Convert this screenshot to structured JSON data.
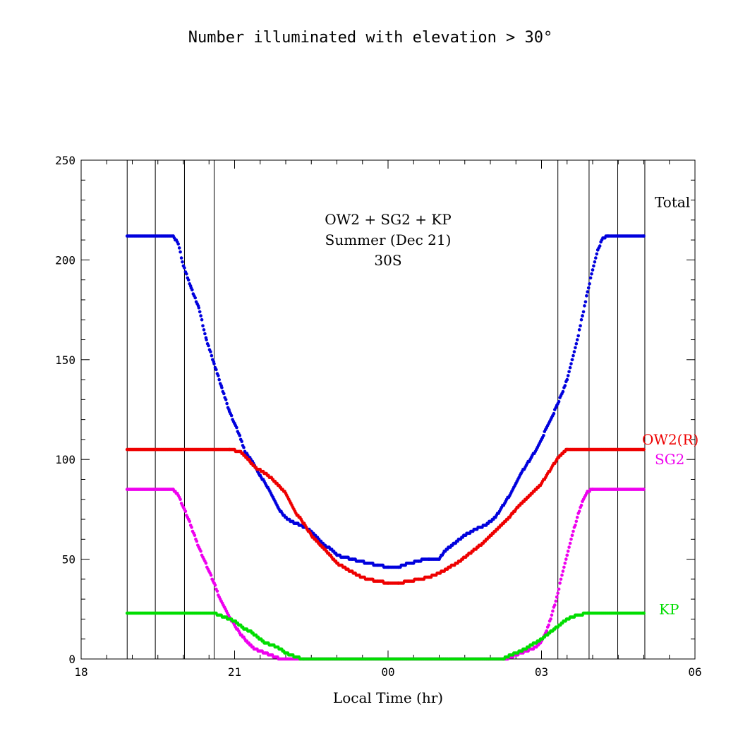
{
  "chart_data": {
    "type": "scatter",
    "title": "Number illuminated with elevation > 30°",
    "xlabel": "Local Time (hr)",
    "ylabel": "",
    "xlim": [
      18,
      30
    ],
    "ylim": [
      0,
      250
    ],
    "x_tick_values": [
      18,
      21,
      24,
      27,
      30
    ],
    "x_tick_labels": [
      "18",
      "21",
      "00",
      "03",
      "06"
    ],
    "y_tick_values": [
      0,
      50,
      100,
      150,
      200,
      250
    ],
    "y_tick_labels": [
      "0",
      "50",
      "100",
      "150",
      "200",
      "250"
    ],
    "annotation_lines": [
      "OW2 + SG2 + KP",
      "Summer (Dec 21)",
      "30S"
    ],
    "vertical_lines": [
      18.9,
      19.45,
      20.02,
      20.6,
      27.32,
      27.93,
      28.49,
      29.02
    ],
    "series": [
      {
        "name": "Total",
        "color": "#0000dd",
        "points": [
          [
            18.9,
            212
          ],
          [
            19.8,
            212
          ],
          [
            19.9,
            208
          ],
          [
            20.0,
            197
          ],
          [
            20.15,
            186
          ],
          [
            20.3,
            176
          ],
          [
            20.45,
            160
          ],
          [
            20.6,
            148
          ],
          [
            20.75,
            136
          ],
          [
            20.9,
            124
          ],
          [
            21.0,
            118
          ],
          [
            21.1,
            112
          ],
          [
            21.2,
            104
          ],
          [
            21.35,
            99
          ],
          [
            21.5,
            92
          ],
          [
            21.65,
            86
          ],
          [
            21.75,
            81
          ],
          [
            21.85,
            76
          ],
          [
            21.95,
            72
          ],
          [
            22.1,
            69
          ],
          [
            22.3,
            67
          ],
          [
            22.5,
            64
          ],
          [
            22.65,
            60
          ],
          [
            22.75,
            57
          ],
          [
            22.9,
            55
          ],
          [
            23.0,
            52
          ],
          [
            23.3,
            50
          ],
          [
            23.6,
            48
          ],
          [
            23.8,
            47
          ],
          [
            24.0,
            46
          ],
          [
            24.2,
            46
          ],
          [
            24.4,
            48
          ],
          [
            24.6,
            49
          ],
          [
            24.7,
            50
          ],
          [
            24.8,
            50
          ],
          [
            25.0,
            50
          ],
          [
            25.1,
            54
          ],
          [
            25.3,
            58
          ],
          [
            25.5,
            62
          ],
          [
            25.7,
            65
          ],
          [
            25.9,
            67
          ],
          [
            26.1,
            71
          ],
          [
            26.2,
            75
          ],
          [
            26.3,
            79
          ],
          [
            26.4,
            83
          ],
          [
            26.5,
            88
          ],
          [
            26.6,
            93
          ],
          [
            26.7,
            97
          ],
          [
            26.8,
            101
          ],
          [
            26.9,
            105
          ],
          [
            27.0,
            110
          ],
          [
            27.1,
            116
          ],
          [
            27.2,
            121
          ],
          [
            27.3,
            127
          ],
          [
            27.4,
            133
          ],
          [
            27.5,
            140
          ],
          [
            27.6,
            150
          ],
          [
            27.7,
            160
          ],
          [
            27.8,
            172
          ],
          [
            27.9,
            184
          ],
          [
            28.0,
            195
          ],
          [
            28.1,
            205
          ],
          [
            28.2,
            211
          ],
          [
            28.3,
            212
          ],
          [
            29.0,
            212
          ]
        ]
      },
      {
        "name": "OW2(R)",
        "color": "#ee0000",
        "points": [
          [
            18.9,
            105
          ],
          [
            20.9,
            105
          ],
          [
            21.1,
            104
          ],
          [
            21.2,
            102
          ],
          [
            21.3,
            99
          ],
          [
            21.4,
            96
          ],
          [
            21.6,
            93
          ],
          [
            21.75,
            90
          ],
          [
            21.9,
            86
          ],
          [
            22.0,
            83
          ],
          [
            22.1,
            78
          ],
          [
            22.2,
            73
          ],
          [
            22.3,
            70
          ],
          [
            22.4,
            66
          ],
          [
            22.5,
            62
          ],
          [
            22.65,
            58
          ],
          [
            22.8,
            54
          ],
          [
            22.9,
            51
          ],
          [
            23.0,
            48
          ],
          [
            23.2,
            45
          ],
          [
            23.4,
            42
          ],
          [
            23.6,
            40
          ],
          [
            23.8,
            39
          ],
          [
            24.0,
            38
          ],
          [
            24.2,
            38
          ],
          [
            24.4,
            39
          ],
          [
            24.6,
            40
          ],
          [
            24.8,
            41
          ],
          [
            25.0,
            43
          ],
          [
            25.2,
            46
          ],
          [
            25.4,
            49
          ],
          [
            25.6,
            53
          ],
          [
            25.8,
            57
          ],
          [
            26.0,
            62
          ],
          [
            26.2,
            67
          ],
          [
            26.4,
            72
          ],
          [
            26.6,
            78
          ],
          [
            26.8,
            83
          ],
          [
            27.0,
            88
          ],
          [
            27.1,
            92
          ],
          [
            27.2,
            96
          ],
          [
            27.3,
            100
          ],
          [
            27.4,
            103
          ],
          [
            27.5,
            105
          ],
          [
            29.0,
            105
          ]
        ]
      },
      {
        "name": "SG2",
        "color": "#ee00ee",
        "points": [
          [
            18.9,
            85
          ],
          [
            19.8,
            85
          ],
          [
            19.9,
            82
          ],
          [
            20.0,
            76
          ],
          [
            20.1,
            70
          ],
          [
            20.2,
            63
          ],
          [
            20.3,
            56
          ],
          [
            20.4,
            50
          ],
          [
            20.5,
            44
          ],
          [
            20.6,
            38
          ],
          [
            20.7,
            31
          ],
          [
            20.8,
            26
          ],
          [
            20.9,
            21
          ],
          [
            21.0,
            17
          ],
          [
            21.1,
            13
          ],
          [
            21.2,
            10
          ],
          [
            21.3,
            7
          ],
          [
            21.4,
            5
          ],
          [
            21.5,
            4
          ],
          [
            21.6,
            3
          ],
          [
            21.7,
            2
          ],
          [
            21.8,
            1
          ],
          [
            21.9,
            0
          ],
          [
            26.3,
            0
          ],
          [
            26.5,
            2
          ],
          [
            26.7,
            4
          ],
          [
            26.9,
            6
          ],
          [
            27.0,
            9
          ],
          [
            27.1,
            14
          ],
          [
            27.2,
            22
          ],
          [
            27.3,
            31
          ],
          [
            27.4,
            42
          ],
          [
            27.5,
            52
          ],
          [
            27.6,
            62
          ],
          [
            27.7,
            71
          ],
          [
            27.8,
            79
          ],
          [
            27.9,
            84
          ],
          [
            28.0,
            85
          ],
          [
            29.0,
            85
          ]
        ]
      },
      {
        "name": "KP",
        "color": "#00dd00",
        "points": [
          [
            18.9,
            23
          ],
          [
            20.6,
            23
          ],
          [
            20.7,
            22
          ],
          [
            20.8,
            21
          ],
          [
            20.9,
            20
          ],
          [
            21.0,
            19
          ],
          [
            21.1,
            17
          ],
          [
            21.2,
            15
          ],
          [
            21.3,
            14
          ],
          [
            21.4,
            12
          ],
          [
            21.5,
            10
          ],
          [
            21.6,
            8
          ],
          [
            21.75,
            7
          ],
          [
            21.9,
            5
          ],
          [
            22.0,
            3
          ],
          [
            22.1,
            2
          ],
          [
            22.2,
            1
          ],
          [
            22.35,
            0
          ],
          [
            26.25,
            0
          ],
          [
            26.4,
            2
          ],
          [
            26.6,
            4
          ],
          [
            26.8,
            7
          ],
          [
            27.0,
            10
          ],
          [
            27.2,
            14
          ],
          [
            27.35,
            17
          ],
          [
            27.5,
            20
          ],
          [
            27.7,
            22
          ],
          [
            27.9,
            23
          ],
          [
            29.0,
            23
          ]
        ]
      }
    ],
    "legend": [
      {
        "label": "Total",
        "color": "#000000",
        "y": 229
      },
      {
        "label": "OW2(R)",
        "color": "#ee0000",
        "y": 110
      },
      {
        "label": "SG2",
        "color": "#ee00ee",
        "y": 100
      },
      {
        "label": "KP",
        "color": "#00dd00",
        "y": 25
      }
    ]
  }
}
